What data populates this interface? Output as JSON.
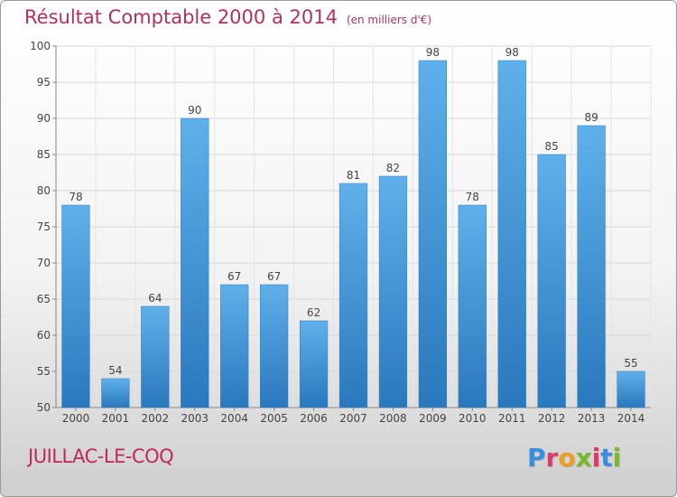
{
  "chart_data": {
    "type": "bar",
    "title": "Résultat Comptable 2000 à 2014",
    "subtitle": "(en milliers d'€)",
    "categories": [
      "2000",
      "2001",
      "2002",
      "2003",
      "2004",
      "2005",
      "2006",
      "2007",
      "2008",
      "2009",
      "2010",
      "2011",
      "2012",
      "2013",
      "2014"
    ],
    "values": [
      78,
      54,
      64,
      90,
      67,
      67,
      62,
      81,
      82,
      98,
      78,
      98,
      85,
      89,
      55
    ],
    "ylim": [
      50,
      100
    ],
    "yticks": [
      50,
      55,
      60,
      65,
      70,
      75,
      80,
      85,
      90,
      95,
      100
    ],
    "grid": true,
    "bar_color": "#3e8fd6"
  },
  "footer": {
    "place": "JUILLAC-LE-COQ",
    "logo": "Proxiti"
  }
}
